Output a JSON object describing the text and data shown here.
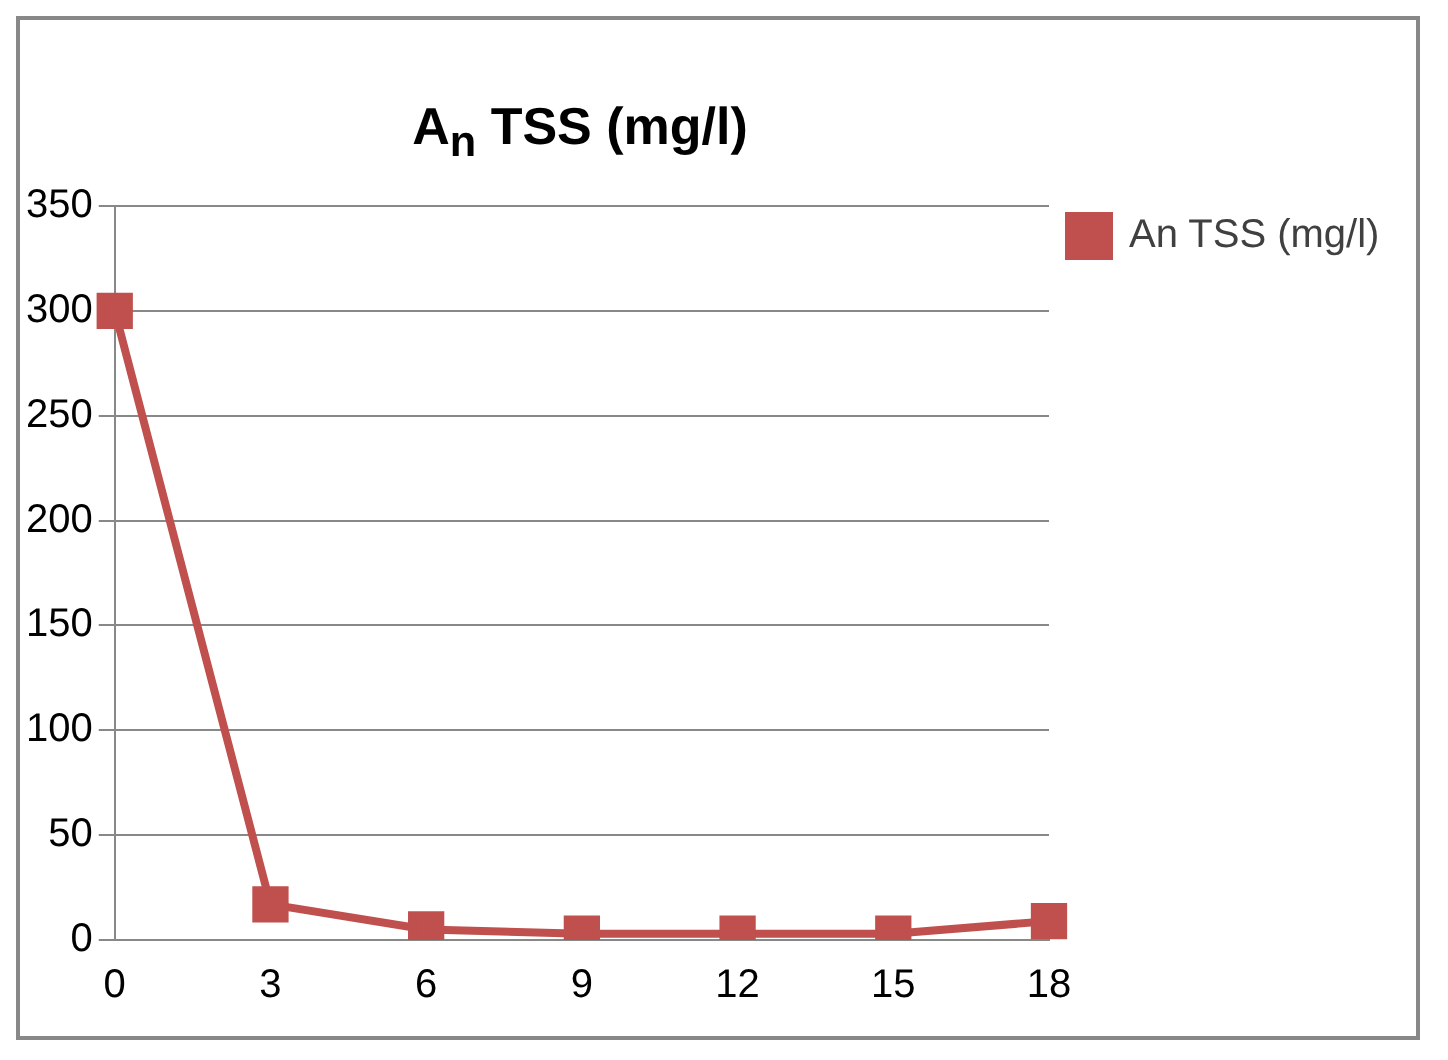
{
  "chart_data": {
    "type": "line",
    "title": "A$_{n}$ TSS (mg/l)",
    "categories": [
      "0",
      "3",
      "6",
      "9",
      "12",
      "15",
      "18"
    ],
    "series": [
      {
        "name": "An TSS (mg/l)",
        "color": "#c0504d",
        "values": [
          300,
          17,
          5,
          3,
          3,
          3,
          9
        ]
      }
    ],
    "ylim": [
      0,
      350
    ],
    "yticks": [
      0,
      50,
      100,
      150,
      200,
      250,
      300,
      350
    ],
    "grid": "y",
    "legend": "right",
    "marker": "square",
    "line_style": "solid"
  }
}
